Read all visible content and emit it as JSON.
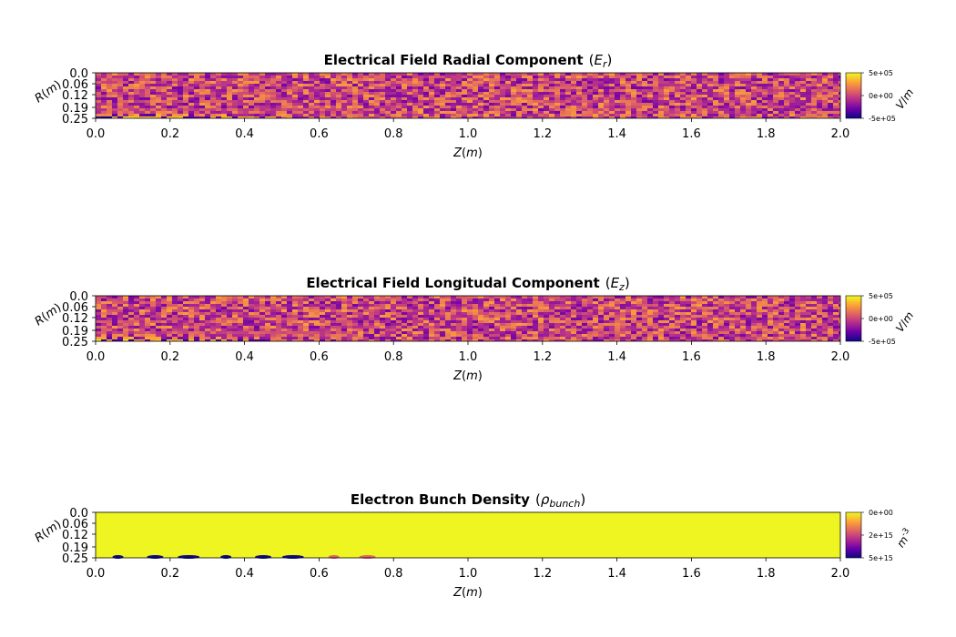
{
  "panels": [
    {
      "title_prefix": "Electrical Field Radial Component",
      "title_symbol": "E",
      "title_subscript": "r",
      "field": "er",
      "cbar_ticks": [
        "5e+05",
        "0e+00",
        "-5e+05"
      ],
      "cbar_unit": "V/m",
      "cbar_unit_num": "V",
      "cbar_unit_den": "m"
    },
    {
      "title_prefix": "Electrical Field Longitudal Component",
      "title_symbol": "E",
      "title_subscript": "z",
      "field": "ez",
      "cbar_ticks": [
        "5e+05",
        "0e+00",
        "-5e+05"
      ],
      "cbar_unit": "V/m",
      "cbar_unit_num": "V",
      "cbar_unit_den": "m"
    },
    {
      "title_prefix": "Electron Bunch Density",
      "title_symbol": "ρ",
      "title_subscript": "bunch",
      "field": "rho",
      "cbar_ticks": [
        "0e+00",
        "2e+15",
        "5e+15"
      ],
      "cbar_unit": "m^-3",
      "cbar_unit_num": "m",
      "cbar_unit_den": "-3"
    }
  ],
  "axes": {
    "xlabel_var": "Z",
    "xlabel_unit": "m",
    "ylabel_var": "R",
    "ylabel_unit": "m",
    "x_ticks": [
      "0.0",
      "0.2",
      "0.4",
      "0.6",
      "0.8",
      "1.0",
      "1.2",
      "1.4",
      "1.6",
      "1.8",
      "2.0"
    ],
    "y_ticks": [
      "0.0",
      "0.06",
      "0.12",
      "0.19",
      "0.25"
    ]
  },
  "chart_data": [
    {
      "type": "heatmap",
      "title": "Electrical Field Radial Component (Er)",
      "xlabel": "Z(m)",
      "ylabel": "R(m)",
      "xlim": [
        0.0,
        2.0
      ],
      "ylim": [
        0.25,
        0.0
      ],
      "colormap": "plasma",
      "colorbar": {
        "min": -500000,
        "max": 500000,
        "ticks": [
          500000,
          0,
          -500000
        ],
        "label": "V/m"
      },
      "description_of_field": "noisy field centered near 0; strong ± values near R≈0.25 for Z from 0.0 to about 0.72"
    },
    {
      "type": "heatmap",
      "title": "Electrical Field Longitudal Component (Ez)",
      "xlabel": "Z(m)",
      "ylabel": "R(m)",
      "xlim": [
        0.0,
        2.0
      ],
      "ylim": [
        0.25,
        0.0
      ],
      "colormap": "plasma",
      "colorbar": {
        "min": -500000,
        "max": 500000,
        "ticks": [
          500000,
          0,
          -500000
        ],
        "label": "V/m"
      },
      "description_of_field": "noisy field centered near 0; strong ± values near R≈0.25 for Z from 0.0 to about 0.7"
    },
    {
      "type": "heatmap",
      "title": "Electron Bunch Density (ρbunch)",
      "xlabel": "Z(m)",
      "ylabel": "R(m)",
      "xlim": [
        0.0,
        2.0
      ],
      "ylim": [
        0.25,
        0.0
      ],
      "colormap": "plasma",
      "colorbar": {
        "ticks": [
          0,
          2000000000000000.0,
          5000000000000000.0
        ],
        "label": "m^-3"
      },
      "bunches_z": [
        0.06,
        0.16,
        0.25,
        0.35,
        0.45,
        0.53,
        0.64,
        0.73
      ]
    }
  ],
  "colors": {
    "plasma": [
      "#0d0887",
      "#6a00a8",
      "#b12a90",
      "#e16462",
      "#fca636",
      "#f0f921"
    ],
    "background_fill": "#eef520"
  }
}
